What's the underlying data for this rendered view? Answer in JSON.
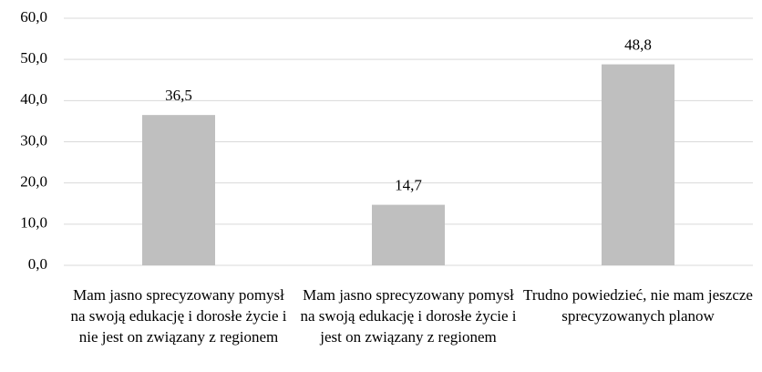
{
  "chart_data": {
    "type": "bar",
    "categories": [
      "Mam jasno sprecyzowany pomysł na swoją edukację i dorosłe życie i nie jest on związany z regionem",
      "Mam jasno sprecyzowany pomysł na swoją edukację i dorosłe życie i jest on związany z regionem",
      "Trudno powiedzieć, nie mam jeszcze sprecyzowanych planow"
    ],
    "values": [
      36.5,
      14.7,
      48.8
    ],
    "value_labels": [
      "36,5",
      "14,7",
      "48,8"
    ],
    "color": "#bfbfbf",
    "ylim": [
      0,
      60
    ],
    "yticks": [
      {
        "value": 0,
        "label": "0,0"
      },
      {
        "value": 10,
        "label": "10,0"
      },
      {
        "value": 20,
        "label": "20,0"
      },
      {
        "value": 30,
        "label": "30,0"
      },
      {
        "value": 40,
        "label": "40,0"
      },
      {
        "value": 50,
        "label": "50,0"
      },
      {
        "value": 60,
        "label": "60,0"
      }
    ],
    "grid": true
  }
}
